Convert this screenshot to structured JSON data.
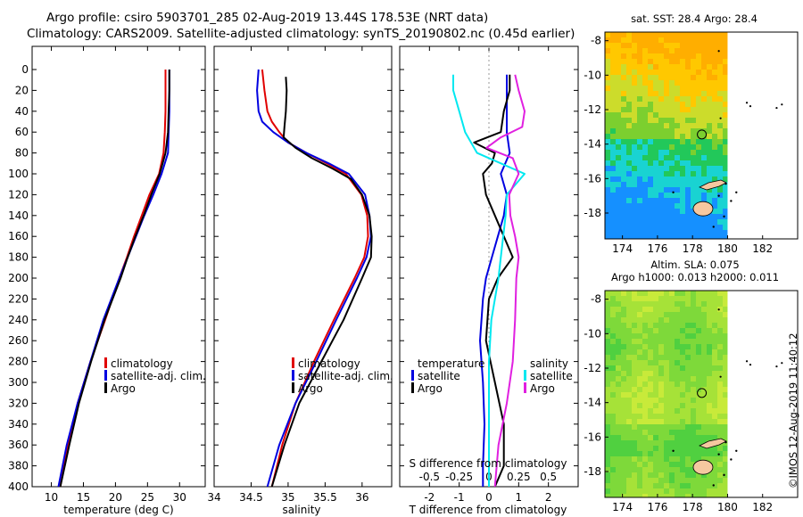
{
  "title": {
    "line1": "Argo profile: csiro 5903701_285 02-Aug-2019 13.44S 178.53E (NRT data)",
    "line2": "Climatology: CARS2009. Satellite-adjusted climatology: synTS_20190802.nc (0.45d earlier)"
  },
  "stamp": "©IMOS 12-Aug-2019 11:40:12",
  "colors": {
    "argo": "#000000",
    "climatology": "#e00000",
    "satellite": "#0000e0",
    "satellite_s": "#00e8f0",
    "salinity_diff": "#e020e0",
    "land": "#f5c8a0"
  },
  "chart_data": [
    {
      "type": "line",
      "id": "temperature",
      "xlabel": "temperature (deg C)",
      "ylabel": "",
      "xlim": [
        7,
        34
      ],
      "ylim": [
        400,
        0
      ],
      "xticks": [
        10,
        15,
        20,
        25,
        30
      ],
      "yticks": [
        0,
        20,
        40,
        60,
        80,
        100,
        120,
        140,
        160,
        180,
        200,
        220,
        240,
        260,
        280,
        300,
        320,
        340,
        360,
        380,
        400
      ],
      "legend": [
        "climatology",
        "satellite-adj. clim.",
        "Argo"
      ],
      "series": [
        {
          "name": "climatology",
          "depth": [
            0,
            20,
            40,
            60,
            80,
            100,
            120,
            140,
            160,
            180,
            200,
            240,
            280,
            320,
            360,
            400
          ],
          "values": [
            27.8,
            27.8,
            27.8,
            27.7,
            27.5,
            26.8,
            25.3,
            24.1,
            22.9,
            21.8,
            20.6,
            18.4,
            16.1,
            14.1,
            12.6,
            11.4
          ]
        },
        {
          "name": "satellite-adj. clim.",
          "depth": [
            0,
            20,
            40,
            60,
            80,
            100,
            120,
            140,
            160,
            180,
            200,
            240,
            280,
            320,
            360,
            400
          ],
          "values": [
            28.4,
            28.4,
            28.4,
            28.3,
            28.2,
            27.2,
            25.9,
            24.5,
            23.2,
            21.9,
            20.6,
            18.1,
            16.1,
            14.1,
            12.4,
            11.1
          ]
        },
        {
          "name": "Argo",
          "depth": [
            0,
            20,
            40,
            60,
            80,
            100,
            120,
            140,
            160,
            180,
            200,
            240,
            280,
            320,
            360,
            400
          ],
          "values": [
            28.4,
            28.4,
            28.3,
            28.2,
            27.8,
            26.9,
            25.6,
            24.4,
            23.1,
            21.9,
            20.8,
            18.3,
            16.2,
            14.3,
            12.8,
            11.4
          ]
        }
      ]
    },
    {
      "type": "line",
      "id": "salinity",
      "xlabel": "salinity",
      "ylabel": "",
      "xlim": [
        34,
        36.4
      ],
      "ylim": [
        400,
        0
      ],
      "xticks": [
        34,
        34.5,
        35,
        35.5,
        36
      ],
      "yticks": [],
      "legend": [
        "climatology",
        "satellite-adj. clim.",
        "Argo"
      ],
      "series": [
        {
          "name": "climatology",
          "depth": [
            0,
            20,
            40,
            50,
            60,
            70,
            80,
            90,
            100,
            120,
            140,
            160,
            180,
            200,
            240,
            280,
            320,
            360,
            400
          ],
          "values": [
            34.65,
            34.68,
            34.72,
            34.78,
            34.88,
            35.0,
            35.25,
            35.52,
            35.78,
            35.99,
            36.07,
            36.08,
            36.03,
            35.9,
            35.62,
            35.35,
            35.1,
            34.92,
            34.78
          ]
        },
        {
          "name": "satellite-adj. clim.",
          "depth": [
            0,
            20,
            40,
            50,
            60,
            70,
            80,
            90,
            100,
            120,
            140,
            160,
            180,
            200,
            240,
            280,
            320,
            360,
            400
          ],
          "values": [
            34.6,
            34.58,
            34.6,
            34.65,
            34.8,
            35.0,
            35.25,
            35.55,
            35.82,
            36.04,
            36.1,
            36.12,
            36.06,
            35.93,
            35.65,
            35.38,
            35.1,
            34.88,
            34.72
          ]
        },
        {
          "name": "Argo",
          "depth": [
            7,
            20,
            40,
            55,
            65,
            75,
            85,
            95,
            105,
            120,
            140,
            160,
            180,
            200,
            240,
            280,
            320,
            360,
            400
          ],
          "values": [
            34.97,
            34.98,
            34.97,
            34.95,
            34.94,
            35.1,
            35.32,
            35.6,
            35.85,
            36.0,
            36.1,
            36.13,
            36.12,
            36.0,
            35.75,
            35.45,
            35.15,
            34.95,
            34.78
          ]
        }
      ]
    },
    {
      "type": "line",
      "id": "difference",
      "xlabel": "T difference from climatology",
      "xlabel2": "S difference from climatology",
      "xlim": [
        -3,
        3
      ],
      "ylim": [
        400,
        0
      ],
      "xticks": [
        -2,
        -1,
        0,
        1,
        2
      ],
      "xticks_s": [
        -0.5,
        -0.25,
        0,
        0.25,
        0.5
      ],
      "xticks_s_labels": [
        "-0.5",
        "-0.25",
        "0",
        "0.25",
        "0.5"
      ],
      "legend": {
        "temperature_head": "temperature",
        "salinity_head": "salinity",
        "t_items": [
          "satellite",
          "Argo"
        ],
        "s_items": [
          "satellite",
          "Argo"
        ]
      },
      "series": [
        {
          "name": "T satellite",
          "depth": [
            5,
            20,
            40,
            60,
            80,
            100,
            120,
            140,
            160,
            180,
            200,
            220,
            260,
            300,
            340,
            380,
            400
          ],
          "values": [
            0.6,
            0.6,
            0.6,
            0.6,
            0.7,
            0.4,
            0.6,
            0.5,
            0.3,
            0.1,
            -0.1,
            -0.2,
            -0.3,
            -0.2,
            -0.15,
            -0.2,
            -0.2
          ]
        },
        {
          "name": "T Argo",
          "depth": [
            5,
            20,
            40,
            60,
            70,
            80,
            90,
            100,
            120,
            140,
            160,
            180,
            200,
            220,
            260,
            300,
            340,
            380,
            400
          ],
          "values": [
            0.7,
            0.7,
            0.5,
            0.4,
            -0.5,
            0.2,
            0.1,
            -0.2,
            -0.1,
            0.2,
            0.5,
            0.8,
            0.3,
            0.0,
            -0.1,
            0.2,
            0.5,
            0.5,
            0.2
          ]
        },
        {
          "name": "S satellite",
          "depth": [
            5,
            20,
            40,
            60,
            80,
            100,
            120,
            140,
            160,
            180,
            200,
            240,
            280,
            320,
            360,
            400
          ],
          "values": [
            -0.3,
            -0.3,
            -0.25,
            -0.2,
            -0.1,
            0.3,
            0.15,
            0.14,
            0.12,
            0.1,
            0.08,
            0.02,
            0.0,
            0.0,
            0.0,
            0.0
          ]
        },
        {
          "name": "S Argo",
          "depth": [
            5,
            20,
            40,
            55,
            65,
            75,
            85,
            100,
            120,
            140,
            160,
            180,
            200,
            240,
            280,
            320,
            360,
            400
          ],
          "values": [
            0.22,
            0.25,
            0.3,
            0.28,
            0.1,
            -0.02,
            0.2,
            0.25,
            0.17,
            0.18,
            0.22,
            0.25,
            0.23,
            0.22,
            0.2,
            0.15,
            0.08,
            0.05
          ]
        }
      ]
    },
    {
      "type": "heatmap",
      "id": "sst_map",
      "title": "sat. SST: 28.4 Argo: 28.4",
      "xticks": [
        174,
        176,
        178,
        180,
        182
      ],
      "yticks": [
        -8,
        -10,
        -12,
        -14,
        -16,
        -18
      ],
      "xlim": [
        173,
        184
      ],
      "ylim": [
        -19.5,
        -7.5
      ],
      "data_lon_max": 180,
      "argo_position": {
        "lon": 178.53,
        "lat": -13.44
      },
      "colormap": [
        "#1590ff",
        "#19d3d2",
        "#22c85a",
        "#7ccf2f",
        "#ccdc2b",
        "#ffc800",
        "#ffae00"
      ]
    },
    {
      "type": "heatmap",
      "id": "sla_map",
      "title": "Altim. SLA: 0.075",
      "subtitle": "Argo h1000: 0.013 h2000: 0.011",
      "xticks": [
        174,
        176,
        178,
        180,
        182
      ],
      "yticks": [
        -8,
        -10,
        -12,
        -14,
        -16,
        -18
      ],
      "xlim": [
        173,
        184
      ],
      "ylim": [
        -19.5,
        -7.5
      ],
      "data_lon_max": 180,
      "argo_position": {
        "lon": 178.53,
        "lat": -13.44
      },
      "colormap": [
        "#50d040",
        "#7ed93a",
        "#a6e238",
        "#c8ea3a"
      ]
    }
  ]
}
